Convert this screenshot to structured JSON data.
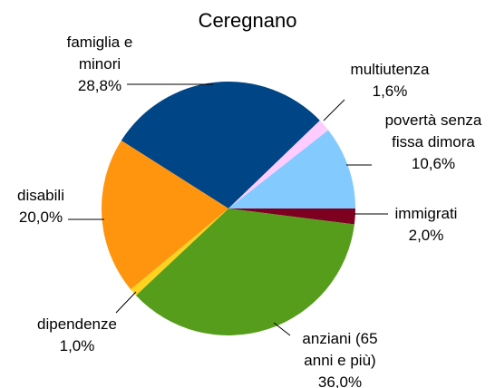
{
  "chart_data": {
    "type": "pie",
    "title": "Ceregnano",
    "categories": [
      "famiglia e minori",
      "multiutenza",
      "povertà senza fissa dimora",
      "immigrati",
      "anziani (65 anni e più)",
      "dipendenze",
      "disabili"
    ],
    "values": [
      28.8,
      1.6,
      10.6,
      2.0,
      36.0,
      1.0,
      20.0
    ],
    "value_labels": [
      "28,8%",
      "1,6%",
      "10,6%",
      "2,0%",
      "36,0%",
      "1,0%",
      "20,0%"
    ],
    "colors": [
      "#004586",
      "#ffccff",
      "#83caff",
      "#7e0021",
      "#579d1c",
      "#ffd320",
      "#ff950e"
    ]
  }
}
